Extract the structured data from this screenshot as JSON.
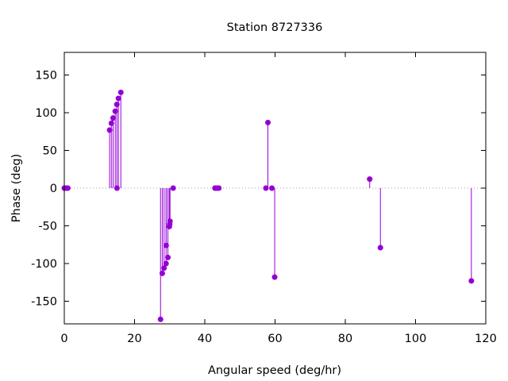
{
  "chart_data": {
    "type": "scatter",
    "style": "impulses-with-points",
    "title": "Station 8727336",
    "xlabel": "Angular speed (deg/hr)",
    "ylabel": "Phase (deg)",
    "xlim": [
      0,
      120
    ],
    "ylim": [
      -180,
      180
    ],
    "xticks": [
      0,
      20,
      40,
      60,
      80,
      100,
      120
    ],
    "yticks": [
      -150,
      -100,
      -50,
      0,
      50,
      100,
      150
    ],
    "zero_line": true,
    "grid": false,
    "color": "#9400d3",
    "points": [
      {
        "x": 0.0,
        "y": 0
      },
      {
        "x": 0.5,
        "y": 0
      },
      {
        "x": 1.0,
        "y": 0
      },
      {
        "x": 12.9,
        "y": 77
      },
      {
        "x": 13.4,
        "y": 86
      },
      {
        "x": 13.9,
        "y": 93
      },
      {
        "x": 14.5,
        "y": 102
      },
      {
        "x": 14.96,
        "y": 111
      },
      {
        "x": 15.0,
        "y": 0
      },
      {
        "x": 15.4,
        "y": 119
      },
      {
        "x": 16.1,
        "y": 127
      },
      {
        "x": 27.4,
        "y": -174
      },
      {
        "x": 27.9,
        "y": -113
      },
      {
        "x": 28.4,
        "y": -106
      },
      {
        "x": 28.98,
        "y": -100
      },
      {
        "x": 29.0,
        "y": -76
      },
      {
        "x": 29.5,
        "y": -92
      },
      {
        "x": 29.9,
        "y": -51
      },
      {
        "x": 30.0,
        "y": -48
      },
      {
        "x": 30.1,
        "y": -44
      },
      {
        "x": 31.0,
        "y": 0
      },
      {
        "x": 42.9,
        "y": 0
      },
      {
        "x": 43.5,
        "y": 0
      },
      {
        "x": 44.0,
        "y": 0
      },
      {
        "x": 57.4,
        "y": 0
      },
      {
        "x": 57.97,
        "y": 87
      },
      {
        "x": 59.1,
        "y": 0
      },
      {
        "x": 59.9,
        "y": -118
      },
      {
        "x": 86.95,
        "y": 12
      },
      {
        "x": 90.0,
        "y": -79
      },
      {
        "x": 115.9,
        "y": -123
      }
    ]
  }
}
